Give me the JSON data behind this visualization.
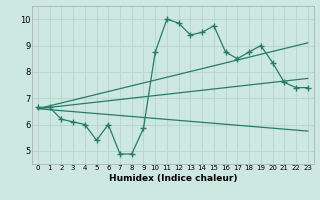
{
  "xlabel": "Humidex (Indice chaleur)",
  "xlim": [
    -0.5,
    23.5
  ],
  "ylim": [
    4.5,
    10.5
  ],
  "yticks": [
    5,
    6,
    7,
    8,
    9,
    10
  ],
  "xticks": [
    0,
    1,
    2,
    3,
    4,
    5,
    6,
    7,
    8,
    9,
    10,
    11,
    12,
    13,
    14,
    15,
    16,
    17,
    18,
    19,
    20,
    21,
    22,
    23
  ],
  "bg_color": "#cde8e0",
  "line_color": "#2a7a6a",
  "grid_color": "#b8d8d0",
  "lines": {
    "line1_x": [
      0,
      1,
      2,
      3,
      4,
      5,
      6,
      7,
      8,
      9,
      10,
      11,
      12,
      13,
      14,
      15,
      16,
      17,
      18,
      19,
      20,
      21,
      22,
      23
    ],
    "line1_y": [
      6.65,
      6.65,
      6.2,
      6.1,
      6.0,
      5.4,
      6.0,
      4.88,
      4.88,
      5.85,
      8.75,
      10.0,
      9.85,
      9.4,
      9.5,
      9.75,
      8.75,
      8.5,
      8.75,
      9.0,
      8.35,
      7.6,
      7.4,
      7.4
    ],
    "line2_x": [
      0,
      23
    ],
    "line2_y": [
      6.6,
      9.1
    ],
    "line3_x": [
      0,
      23
    ],
    "line3_y": [
      6.6,
      7.75
    ],
    "line4_x": [
      0,
      23
    ],
    "line4_y": [
      6.6,
      5.75
    ]
  }
}
